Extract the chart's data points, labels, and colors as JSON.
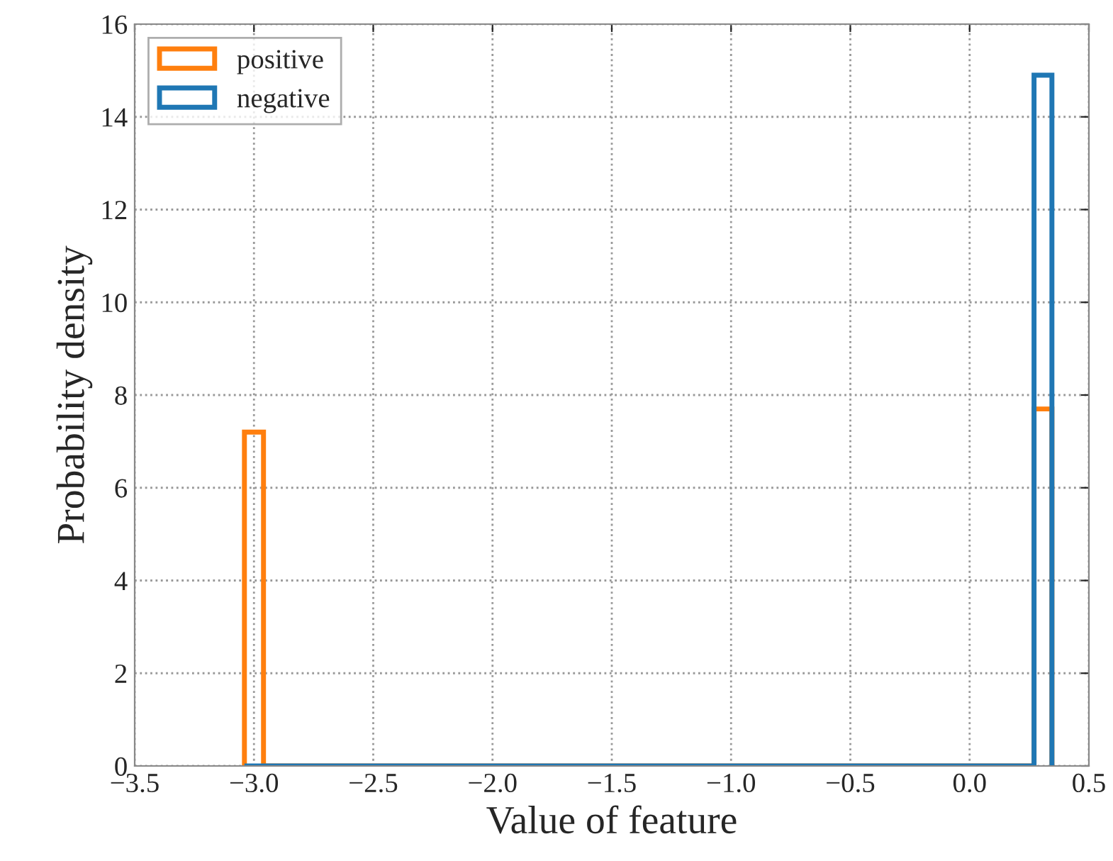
{
  "chart_data": {
    "type": "histogram",
    "xlabel": "Value of feature",
    "ylabel": "Probability density",
    "bins": [
      -3.04,
      -2.96,
      0.27,
      0.345
    ],
    "series": [
      {
        "name": "positive",
        "color": "#ff7f0e",
        "values": [
          7.2,
          0,
          7.7
        ]
      },
      {
        "name": "negative",
        "color": "#1f77b4",
        "values": [
          0,
          0,
          14.9
        ]
      }
    ],
    "xlim": [
      -3.5,
      0.5
    ],
    "xticks": [
      {
        "value": -3.5,
        "label": "−3.5"
      },
      {
        "value": -3.0,
        "label": "−3.0"
      },
      {
        "value": -2.5,
        "label": "−2.5"
      },
      {
        "value": -2.0,
        "label": "−2.0"
      },
      {
        "value": -1.5,
        "label": "−1.5"
      },
      {
        "value": -1.0,
        "label": "−1.0"
      },
      {
        "value": -0.5,
        "label": "−0.5"
      },
      {
        "value": 0.0,
        "label": "0.0"
      },
      {
        "value": 0.5,
        "label": "0.5"
      }
    ],
    "ylim": [
      0,
      16
    ],
    "yticks": [
      0,
      2,
      4,
      6,
      8,
      10,
      12,
      14,
      16
    ],
    "grid": true,
    "legend": "top left"
  }
}
